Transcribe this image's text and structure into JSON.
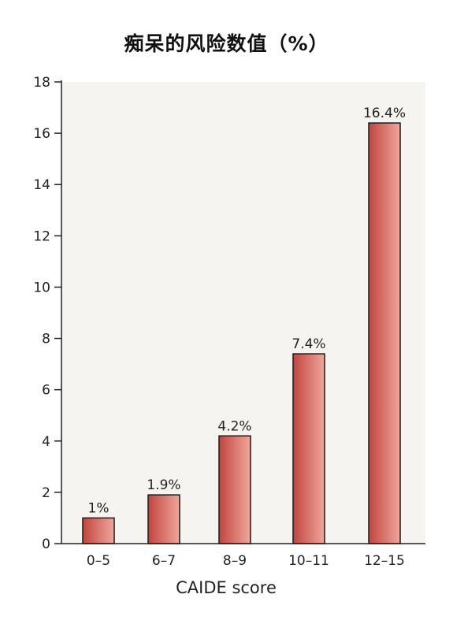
{
  "chart_data": {
    "type": "bar",
    "title": "痴呆的风险数值（%）",
    "xlabel": "CAIDE score",
    "ylabel": "",
    "categories": [
      "0–5",
      "6–7",
      "8–9",
      "10–11",
      "12–15"
    ],
    "values": [
      1,
      1.9,
      4.2,
      7.4,
      16.4
    ],
    "data_labels": [
      "1%",
      "1.9%",
      "4.2%",
      "7.4%",
      "16.4%"
    ],
    "ylim": [
      0,
      18
    ],
    "yticks": [
      0,
      2,
      4,
      6,
      8,
      10,
      12,
      14,
      16,
      18
    ],
    "grid": false,
    "legend": "none",
    "colors": {
      "bar_light": "#f0a79c",
      "bar_dark": "#c0453f",
      "bar_outline": "#1a1a1a",
      "plot_background": "#f5f4f1",
      "axis": "#222222"
    }
  }
}
